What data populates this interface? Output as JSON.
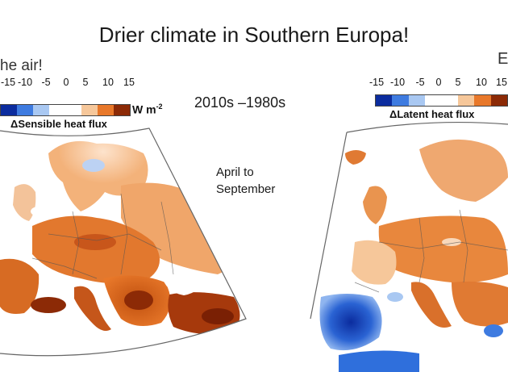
{
  "slide": {
    "title": "Drier climate in Southern Europa!",
    "left_caption": "he air!",
    "right_caption": "E",
    "period": "2010s –1980s",
    "season_line1": "April to",
    "season_line2": "September"
  },
  "left_panel": {
    "label": "ΔSensible heat flux",
    "unit": "W m",
    "unit_exp": "-2",
    "tick_labels": [
      "-15",
      "-10",
      "-5",
      "0",
      "5",
      "10",
      "15"
    ]
  },
  "right_panel": {
    "label": "ΔLatent heat flux",
    "tick_labels": [
      "-15",
      "-10",
      "-5",
      "0",
      "5",
      "10",
      "15"
    ]
  },
  "colors": {
    "strong_negative": "#0b2c9e",
    "negative": "#3e7be0",
    "weak_negative": "#a9c8f2",
    "neutral": "#ffffff",
    "weak_positive": "#f6c79a",
    "positive": "#e8782a",
    "strong_positive": "#8c2a06",
    "sea": "#ffffff",
    "border_line": "#555555"
  },
  "colorbar_scale": [
    -15,
    -10,
    -5,
    0,
    5,
    10,
    15
  ]
}
